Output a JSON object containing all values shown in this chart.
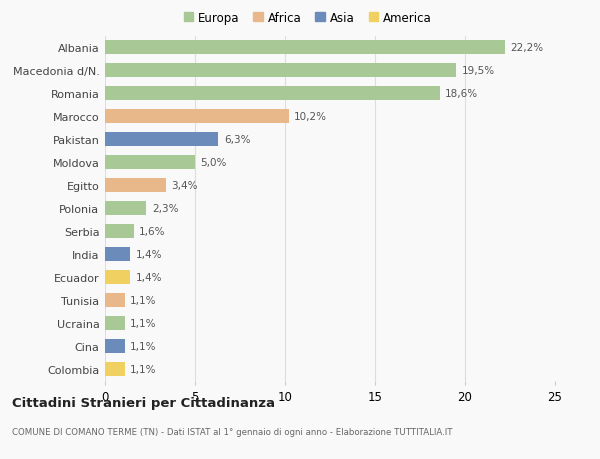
{
  "countries": [
    "Albania",
    "Macedonia d/N.",
    "Romania",
    "Marocco",
    "Pakistan",
    "Moldova",
    "Egitto",
    "Polonia",
    "Serbia",
    "India",
    "Ecuador",
    "Tunisia",
    "Ucraina",
    "Cina",
    "Colombia"
  ],
  "values": [
    22.2,
    19.5,
    18.6,
    10.2,
    6.3,
    5.0,
    3.4,
    2.3,
    1.6,
    1.4,
    1.4,
    1.1,
    1.1,
    1.1,
    1.1
  ],
  "labels": [
    "22,2%",
    "19,5%",
    "18,6%",
    "10,2%",
    "6,3%",
    "5,0%",
    "3,4%",
    "2,3%",
    "1,6%",
    "1,4%",
    "1,4%",
    "1,1%",
    "1,1%",
    "1,1%",
    "1,1%"
  ],
  "continents": [
    "Europa",
    "Europa",
    "Europa",
    "Africa",
    "Asia",
    "Europa",
    "Africa",
    "Europa",
    "Europa",
    "Asia",
    "America",
    "Africa",
    "Europa",
    "Asia",
    "America"
  ],
  "continent_colors": {
    "Europa": "#a8c896",
    "Africa": "#e8b88a",
    "Asia": "#6b8cba",
    "America": "#f0d060"
  },
  "legend_order": [
    "Europa",
    "Africa",
    "Asia",
    "America"
  ],
  "title": "Cittadini Stranieri per Cittadinanza",
  "subtitle": "COMUNE DI COMANO TERME (TN) - Dati ISTAT al 1° gennaio di ogni anno - Elaborazione TUTTITALIA.IT",
  "xlim": [
    0,
    25
  ],
  "xticks": [
    0,
    5,
    10,
    15,
    20,
    25
  ],
  "background_color": "#f9f9f9",
  "grid_color": "#dddddd",
  "bar_height": 0.6
}
